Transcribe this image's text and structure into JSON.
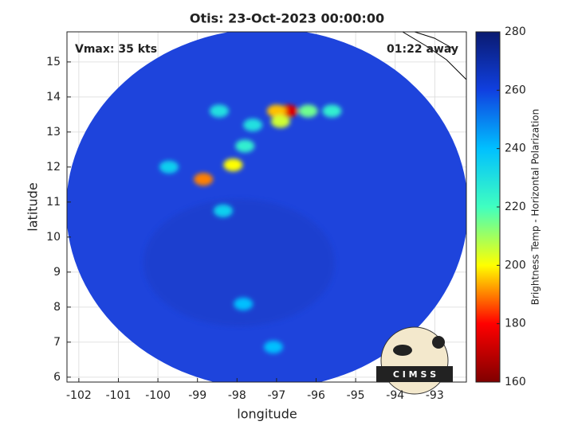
{
  "chart_data": {
    "type": "heatmap",
    "title": "Otis: 23-Oct-2023 00:00:00",
    "annotations": [
      "Vmax: 35 kts",
      "01:22 away"
    ],
    "xlabel": "longitude",
    "ylabel": "latitude",
    "colorbar_label": "Brightness Temp - Horizontal Polarization",
    "logo": "C I M S S",
    "xlim": [
      -102.3,
      -92.2
    ],
    "xticks": [
      -102,
      -101,
      -100,
      -99,
      -98,
      -97,
      -96,
      -95,
      -94,
      -93
    ],
    "ylim": [
      5.86,
      15.86
    ],
    "yticks": [
      6,
      7,
      8,
      9,
      10,
      11,
      12,
      13,
      14,
      15
    ],
    "clim": [
      160,
      280
    ],
    "cticks": [
      160,
      180,
      200,
      220,
      240,
      260,
      280
    ],
    "colormap": [
      "#800000",
      "#ff0000",
      "#ffff00",
      "#40ffc0",
      "#00c0ff",
      "#1040e0",
      "#0a1a70"
    ],
    "grid": true,
    "points": {
      "x": [
        -96.7,
        -97.0,
        -98.1,
        -98.85,
        -97.8,
        -98.45,
        -96.2,
        -95.6,
        -98.35,
        -99.72,
        -97.84,
        -97.08,
        -97.6,
        -96.9
      ],
      "y": [
        13.6,
        13.6,
        12.06,
        11.65,
        12.6,
        13.6,
        13.6,
        13.6,
        10.75,
        12.0,
        8.09,
        6.86,
        13.2,
        13.3
      ],
      "values": [
        175,
        195,
        200,
        190,
        225,
        230,
        215,
        225,
        235,
        235,
        240,
        240,
        230,
        205
      ]
    }
  }
}
